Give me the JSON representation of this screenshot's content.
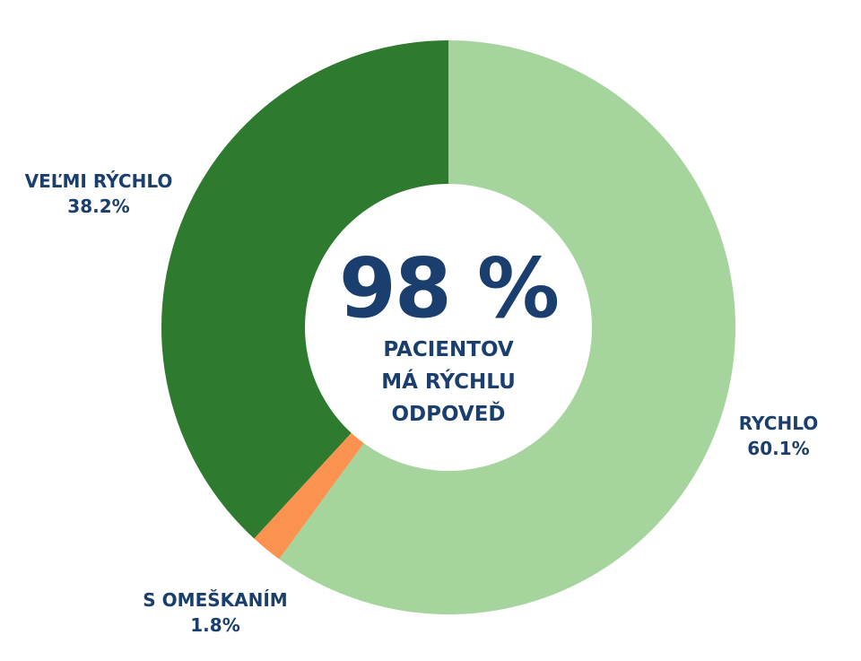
{
  "chart_data": {
    "type": "pie",
    "variant": "donut",
    "slices": [
      {
        "label": "RYCHLO",
        "value": 60.1,
        "value_label": "60.1%",
        "color": "#a5d49c"
      },
      {
        "label": "S OMEŠKANÍM",
        "value": 1.8,
        "value_label": "1.8%",
        "color": "#fb9250"
      },
      {
        "label": "VEĽMI RÝCHLO",
        "value": 38.2,
        "value_label": "38.2%",
        "color": "#2e7a2e"
      }
    ],
    "center_value": "98 %",
    "center_lines": [
      "PACIENTOV",
      "MÁ RÝCHLU",
      "ODPOVEĎ"
    ],
    "text_color": "#1a3e6e",
    "start_angle": "12 o'clock",
    "direction": "clockwise"
  }
}
